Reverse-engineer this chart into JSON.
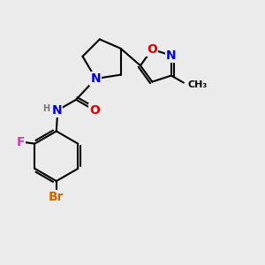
{
  "bg_color": "#ebebeb",
  "bond_color": "#000000",
  "bond_width": 1.5,
  "atom_colors": {
    "N": "#0000dd",
    "O": "#dd0000",
    "F": "#cc44aa",
    "Br": "#cc6600",
    "C": "#000000",
    "H": "#777777"
  },
  "font_size": 9
}
